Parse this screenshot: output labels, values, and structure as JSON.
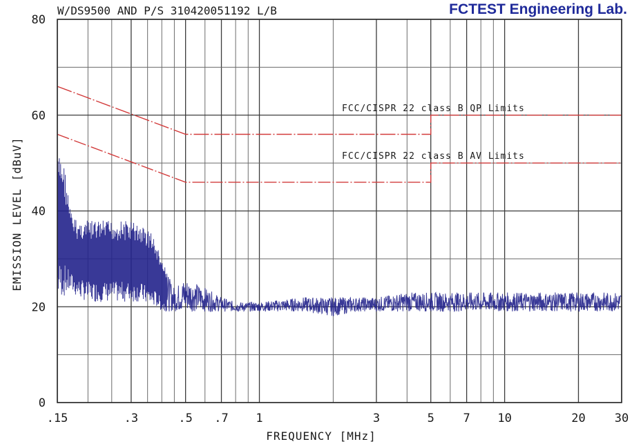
{
  "chart_data": {
    "type": "line",
    "title": "W/DS9500 AND P/S 310420051192 L/B",
    "lab_title": "FCTEST Engineering Lab.",
    "xlabel": "FREQUENCY [MHz]",
    "ylabel": "EMISSION LEVEL [dBuV]",
    "x_scale": "log",
    "xlim": [
      0.15,
      30
    ],
    "ylim": [
      0,
      80
    ],
    "grid": true,
    "x_ticks": [
      {
        "value": 0.15,
        "label": ".15"
      },
      {
        "value": 0.3,
        "label": ".3"
      },
      {
        "value": 0.5,
        "label": ".5"
      },
      {
        "value": 0.7,
        "label": ".7"
      },
      {
        "value": 1,
        "label": "1"
      },
      {
        "value": 3,
        "label": "3"
      },
      {
        "value": 5,
        "label": "5"
      },
      {
        "value": 7,
        "label": "7"
      },
      {
        "value": 10,
        "label": "10"
      },
      {
        "value": 20,
        "label": "20"
      },
      {
        "value": 30,
        "label": "30"
      }
    ],
    "y_ticks": [
      {
        "value": 0,
        "label": "0"
      },
      {
        "value": 20,
        "label": "20"
      },
      {
        "value": 40,
        "label": "40"
      },
      {
        "value": 60,
        "label": "60"
      },
      {
        "value": 80,
        "label": "80"
      }
    ],
    "limits": [
      {
        "label": "FCC/CISPR 22 class B QP Limits",
        "x": [
          0.15,
          0.5,
          5,
          5,
          30
        ],
        "y": [
          66,
          56,
          56,
          60,
          60
        ],
        "color": "#d23a3a"
      },
      {
        "label": "FCC/CISPR 22 class B AV Limits",
        "x": [
          0.15,
          0.5,
          5,
          5,
          30
        ],
        "y": [
          56,
          46,
          46,
          50,
          50
        ],
        "color": "#d23a3a"
      }
    ],
    "series": [
      {
        "color": "#23238c",
        "envelope": {
          "x": [
            0.15,
            0.155,
            0.16,
            0.17,
            0.18,
            0.2,
            0.22,
            0.25,
            0.28,
            0.3,
            0.33,
            0.36,
            0.38,
            0.4,
            0.42,
            0.45,
            0.5,
            0.55,
            0.6,
            0.7,
            0.8,
            1,
            1.5,
            2,
            2.5,
            3,
            4,
            5,
            7,
            10,
            15,
            20,
            30
          ],
          "high": [
            51,
            52,
            50,
            40,
            38,
            38,
            38,
            38,
            38,
            38,
            37,
            36,
            33,
            30,
            27,
            24,
            26,
            25,
            24,
            22,
            21,
            21,
            22,
            22,
            22,
            22,
            23,
            23,
            23,
            23,
            23,
            23,
            23
          ],
          "low": [
            22,
            22,
            22,
            23,
            22,
            21,
            21,
            21,
            21,
            21,
            21,
            20,
            20,
            19,
            19,
            19,
            19,
            19,
            19,
            19,
            19,
            19,
            19,
            18,
            19,
            19,
            19,
            19,
            19,
            19,
            19,
            19,
            19
          ]
        }
      }
    ]
  }
}
